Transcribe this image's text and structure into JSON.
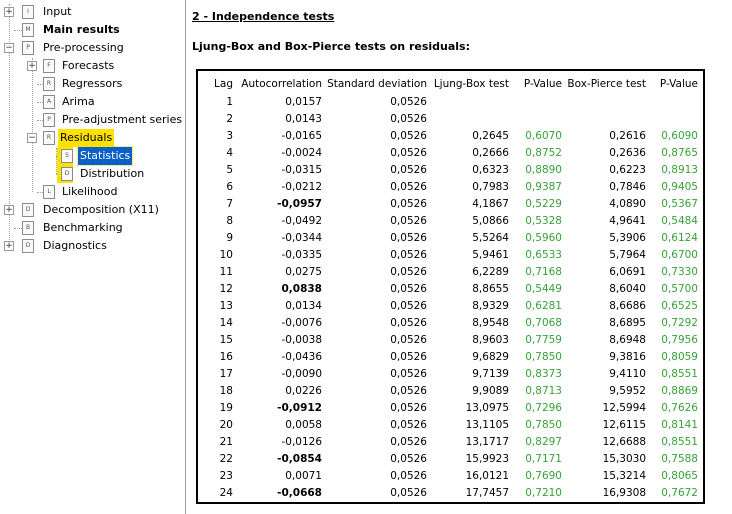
{
  "tree": {
    "input": "Input",
    "main_results": "Main results",
    "pre_processing": "Pre-processing",
    "forecasts": "Forecasts",
    "regressors": "Regressors",
    "arima": "Arima",
    "pre_adjustment": "Pre-adjustment series",
    "residuals": "Residuals",
    "statistics": "Statistics",
    "distribution": "Distribution",
    "likelihood": "Likelihood",
    "decomposition": "Decomposition (X11)",
    "benchmarking": "Benchmarking",
    "diagnostics": "Diagnostics"
  },
  "content": {
    "section_title": "2 - Independence tests",
    "table_heading": "Ljung-Box and Box-Pierce tests on residuals:",
    "columns": [
      "Lag",
      "Autocorrelation",
      "Standard deviation",
      "Ljung-Box test",
      "P-Value",
      "Box-Pierce test",
      "P-Value"
    ],
    "pvalue_color": "#38a138",
    "rows": [
      {
        "lag": "1",
        "ac": "0,0157",
        "sd": "0,0526",
        "lb": "",
        "pv1": "",
        "bp": "",
        "pv2": "",
        "bold": false
      },
      {
        "lag": "2",
        "ac": "0,0143",
        "sd": "0,0526",
        "lb": "",
        "pv1": "",
        "bp": "",
        "pv2": "",
        "bold": false
      },
      {
        "lag": "3",
        "ac": "-0,0165",
        "sd": "0,0526",
        "lb": "0,2645",
        "pv1": "0,6070",
        "bp": "0,2616",
        "pv2": "0,6090",
        "bold": false
      },
      {
        "lag": "4",
        "ac": "-0,0024",
        "sd": "0,0526",
        "lb": "0,2666",
        "pv1": "0,8752",
        "bp": "0,2636",
        "pv2": "0,8765",
        "bold": false
      },
      {
        "lag": "5",
        "ac": "-0,0315",
        "sd": "0,0526",
        "lb": "0,6323",
        "pv1": "0,8890",
        "bp": "0,6223",
        "pv2": "0,8913",
        "bold": false
      },
      {
        "lag": "6",
        "ac": "-0,0212",
        "sd": "0,0526",
        "lb": "0,7983",
        "pv1": "0,9387",
        "bp": "0,7846",
        "pv2": "0,9405",
        "bold": false
      },
      {
        "lag": "7",
        "ac": "-0,0957",
        "sd": "0,0526",
        "lb": "4,1867",
        "pv1": "0,5229",
        "bp": "4,0890",
        "pv2": "0,5367",
        "bold": true
      },
      {
        "lag": "8",
        "ac": "-0,0492",
        "sd": "0,0526",
        "lb": "5,0866",
        "pv1": "0,5328",
        "bp": "4,9641",
        "pv2": "0,5484",
        "bold": false
      },
      {
        "lag": "9",
        "ac": "-0,0344",
        "sd": "0,0526",
        "lb": "5,5264",
        "pv1": "0,5960",
        "bp": "5,3906",
        "pv2": "0,6124",
        "bold": false
      },
      {
        "lag": "10",
        "ac": "-0,0335",
        "sd": "0,0526",
        "lb": "5,9461",
        "pv1": "0,6533",
        "bp": "5,7964",
        "pv2": "0,6700",
        "bold": false
      },
      {
        "lag": "11",
        "ac": "0,0275",
        "sd": "0,0526",
        "lb": "6,2289",
        "pv1": "0,7168",
        "bp": "6,0691",
        "pv2": "0,7330",
        "bold": false
      },
      {
        "lag": "12",
        "ac": "0,0838",
        "sd": "0,0526",
        "lb": "8,8655",
        "pv1": "0,5449",
        "bp": "8,6040",
        "pv2": "0,5700",
        "bold": true
      },
      {
        "lag": "13",
        "ac": "0,0134",
        "sd": "0,0526",
        "lb": "8,9329",
        "pv1": "0,6281",
        "bp": "8,6686",
        "pv2": "0,6525",
        "bold": false
      },
      {
        "lag": "14",
        "ac": "-0,0076",
        "sd": "0,0526",
        "lb": "8,9548",
        "pv1": "0,7068",
        "bp": "8,6895",
        "pv2": "0,7292",
        "bold": false
      },
      {
        "lag": "15",
        "ac": "-0,0038",
        "sd": "0,0526",
        "lb": "8,9603",
        "pv1": "0,7759",
        "bp": "8,6948",
        "pv2": "0,7956",
        "bold": false
      },
      {
        "lag": "16",
        "ac": "-0,0436",
        "sd": "0,0526",
        "lb": "9,6829",
        "pv1": "0,7850",
        "bp": "9,3816",
        "pv2": "0,8059",
        "bold": false
      },
      {
        "lag": "17",
        "ac": "-0,0090",
        "sd": "0,0526",
        "lb": "9,7139",
        "pv1": "0,8373",
        "bp": "9,4110",
        "pv2": "0,8551",
        "bold": false
      },
      {
        "lag": "18",
        "ac": "0,0226",
        "sd": "0,0526",
        "lb": "9,9089",
        "pv1": "0,8713",
        "bp": "9,5952",
        "pv2": "0,8869",
        "bold": false
      },
      {
        "lag": "19",
        "ac": "-0,0912",
        "sd": "0,0526",
        "lb": "13,0975",
        "pv1": "0,7296",
        "bp": "12,5994",
        "pv2": "0,7626",
        "bold": true
      },
      {
        "lag": "20",
        "ac": "0,0058",
        "sd": "0,0526",
        "lb": "13,1105",
        "pv1": "0,7850",
        "bp": "12,6115",
        "pv2": "0,8141",
        "bold": false
      },
      {
        "lag": "21",
        "ac": "-0,0126",
        "sd": "0,0526",
        "lb": "13,1717",
        "pv1": "0,8297",
        "bp": "12,6688",
        "pv2": "0,8551",
        "bold": false
      },
      {
        "lag": "22",
        "ac": "-0,0854",
        "sd": "0,0526",
        "lb": "15,9923",
        "pv1": "0,7171",
        "bp": "15,3030",
        "pv2": "0,7588",
        "bold": true
      },
      {
        "lag": "23",
        "ac": "0,0071",
        "sd": "0,0526",
        "lb": "16,0121",
        "pv1": "0,7690",
        "bp": "15,3214",
        "pv2": "0,8065",
        "bold": false
      },
      {
        "lag": "24",
        "ac": "-0,0668",
        "sd": "0,0526",
        "lb": "17,7457",
        "pv1": "0,7210",
        "bp": "16,9308",
        "pv2": "0,7672",
        "bold": true
      }
    ]
  }
}
